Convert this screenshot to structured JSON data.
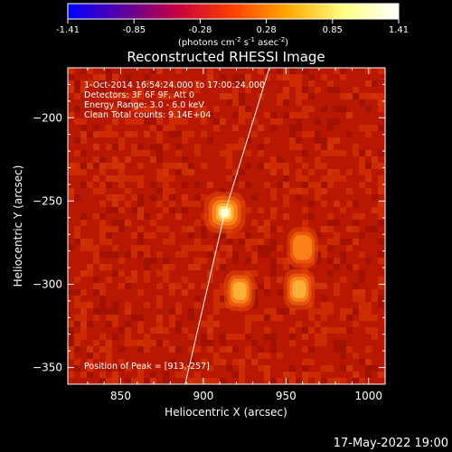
{
  "colorbar": {
    "tick_labels": [
      "-1.41",
      "-0.85",
      "-0.28",
      "0.28",
      "0.85",
      "1.41"
    ],
    "unit_prefix": "(photons cm",
    "unit_exp1": "-2",
    "unit_mid": " s",
    "unit_exp2": "-1",
    "unit_mid2": " asec",
    "unit_exp3": "-2",
    "unit_suffix": ")"
  },
  "chart_data": {
    "type": "heatmap",
    "title": "Reconstructed RHESSI Image",
    "xlabel": "Heliocentric X (arcsec)",
    "ylabel": "Heliocentric Y (arcsec)",
    "xlim": [
      818,
      1010
    ],
    "ylim": [
      -360,
      -170
    ],
    "x_ticks": [
      850,
      900,
      950,
      1000
    ],
    "y_ticks": [
      -200,
      -250,
      -300,
      -350
    ],
    "x_tick_labels": [
      "850",
      "900",
      "950",
      "1000"
    ],
    "y_tick_labels": [
      "−200",
      "−250",
      "−300",
      "−350"
    ],
    "colormap": "hot",
    "sources": [
      {
        "x": 913,
        "y": -257,
        "relative_intensity": 1.0
      },
      {
        "x": 922,
        "y": -304,
        "relative_intensity": 0.55
      },
      {
        "x": 958,
        "y": -303,
        "relative_intensity": 0.55
      },
      {
        "x": 960,
        "y": -278,
        "relative_intensity": 0.4
      }
    ],
    "limb_line": [
      [
        889,
        -360
      ],
      [
        913,
        -257
      ],
      [
        940,
        -170
      ]
    ],
    "peak": [
      913,
      -257
    ],
    "annotations": {
      "time_range": "1-Oct-2014 16:54:24.000 to 17:00:24.000",
      "detectors": "Detectors: 3F 6F 9F, Att 0",
      "energy": "Energy Range: 3.0 - 6.0 keV",
      "clean": "Clean    Total counts: 9.14E+04",
      "peak_label": "Position of Peak = [913,-257]"
    }
  },
  "footer": {
    "timestamp": "17-May-2022 19:00"
  },
  "colors": {
    "background": "#000000",
    "foreground": "#ffffff",
    "map_base": "#c41a00",
    "source_core": "#ffffe0",
    "source_mid": "#ff8c00",
    "colorbar_stops": [
      "#0000ff",
      "#5a00a0",
      "#c8003c",
      "#ff4000",
      "#ffaa00",
      "#ffff80",
      "#ffffff"
    ]
  }
}
